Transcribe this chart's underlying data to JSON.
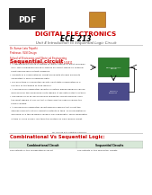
{
  "bg_color": "#ffffff",
  "pdf_badge_bg": "#2d2d2d",
  "pdf_badge_text": "PDF",
  "title_main": "DIGITAL ELECTRONICS",
  "title_main_color": "#cc0000",
  "title_main_size": 5.2,
  "title_sub": "ECE 213",
  "title_sub_color": "#000000",
  "title_sub_size": 5.5,
  "unit_title": "Unit 4 Introduction to Sequential Logic Circuit",
  "unit_title_color": "#555555",
  "unit_title_size": 2.8,
  "author_text": "Dr. Kumar Lata Tripathi\nProfessor, VLSI Design\nSchool of Electronics and Electrical Engineering\nLovely Professional University, Punjab, India 144411",
  "author_color": "#cc0000",
  "author_size": 1.9,
  "section1_title": "Sequential circuit",
  "section1_color": "#cc0000",
  "section1_size": 4.2,
  "body_lines": [
    "• A combinational circuit produces an output based on input variables",
    "  only, but a sequential circuit produces an output based on external",
    "  input and previous output variables.",
    "• Consists of a combinational circuit along with storage elements",
    "  connected to form a feedback path.",
    "• For each type of sequential circuits, next-state classification is a",
    "  function of the timing of their signals.",
    "• A synchronous sequential circuit is a system whose behavior can be",
    "  defined from the knowledge of its signals at discrete instants of time.",
    "• The behavior of an asynchronous sequential circuit depends upon",
    "  the input signals at any instant of time and the order in which the",
    "  inputs change.",
    "• A synchronous sequential circuit employs signals that affect the",
    "  storage elements at only discrete instants of time. Synchronization is",
    "  achieved by a timing device called a clock generator, which generates",
    "  a train of clock pulses. We term the system as clock-driven circuit."
  ],
  "body_color": "#222222",
  "body_size": 1.75,
  "diagram_note": "fig: flip-flop with negative clocked D",
  "diagram_note_color": "#444444",
  "diagram_note_size": 1.5,
  "section2_title": "Combinational Vs Sequential Logic:",
  "section2_color": "#cc0000",
  "section2_size": 3.8,
  "table_header1": "Combinational Circuit",
  "table_header2": "Sequential Circuits",
  "table_header_bg": "#d8e8d8",
  "table_header_color": "#000000",
  "table_header_size": 2.1,
  "table_row_col1": "The outputs of the combinational circuit",
  "table_row_col2": "The outputs of the sequential circuits",
  "table_row_size": 1.75,
  "table_row_color": "#222222",
  "diagram_box1_color": "#2e7d2e",
  "diagram_box2_color": "#4a4a8a",
  "diagram_box1_label": "Combinational\nCircuit",
  "diagram_box2_label": "Memory\nElement",
  "diagram_label_color": "#ffffff",
  "diagram_label_size": 1.7,
  "logo_color": "#c8882a",
  "logo_border": "#8B4513"
}
